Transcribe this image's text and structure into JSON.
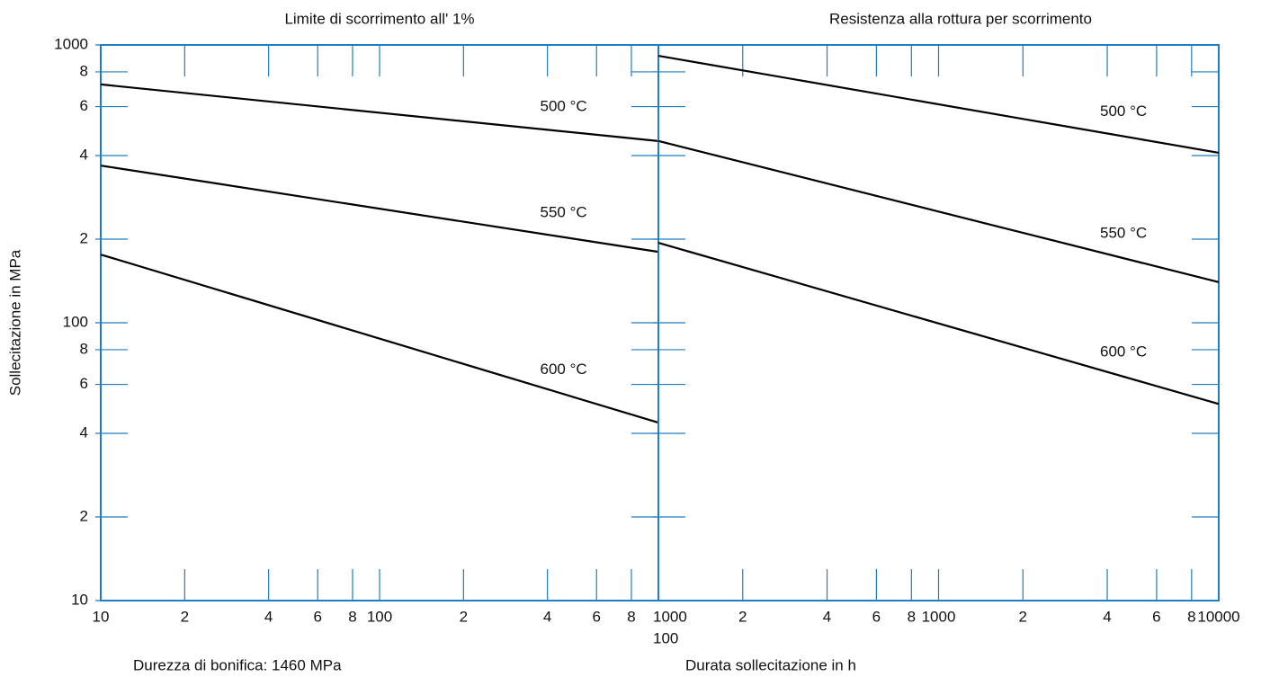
{
  "chart_data": [
    {
      "type": "line",
      "title": "Limite di scorrimento all' 1%",
      "ylabel": "Sollecitazione in MPa",
      "xlabel": "Durezza di bonifica: 1460 MPa",
      "log_x": true,
      "log_y": true,
      "xlim": [
        10,
        1000
      ],
      "ylim": [
        10,
        1000
      ],
      "xticks": [
        10,
        {
          "value": 20,
          "label": "2"
        },
        {
          "value": 40,
          "label": "4"
        },
        {
          "value": 60,
          "label": "6"
        },
        {
          "value": 80,
          "label": "8"
        },
        100,
        {
          "value": 200,
          "label": "2"
        },
        {
          "value": 400,
          "label": "4"
        },
        {
          "value": 600,
          "label": "6"
        },
        {
          "value": 800,
          "label": "8"
        },
        1000
      ],
      "yticks": [
        10,
        {
          "value": 20,
          "label": "2"
        },
        {
          "value": 40,
          "label": "4"
        },
        {
          "value": 60,
          "label": "6"
        },
        {
          "value": 80,
          "label": "8"
        },
        100,
        {
          "value": 200,
          "label": "2"
        },
        {
          "value": 400,
          "label": "4"
        },
        {
          "value": 600,
          "label": "6"
        },
        {
          "value": 800,
          "label": "8"
        },
        1000
      ],
      "axis_color": "#1f7ec1",
      "x": [
        10,
        1000
      ],
      "series": [
        {
          "name": "500 °C",
          "color": "#000000",
          "values": [
            721,
            451
          ]
        },
        {
          "name": "550 °C",
          "color": "#000000",
          "values": [
            368,
            180
          ]
        },
        {
          "name": "600 °C",
          "color": "#000000",
          "values": [
            176,
            43.7
          ]
        }
      ]
    },
    {
      "type": "line",
      "title": "Resistenza alla rottura per scorrimento",
      "xlabel": "Durata sollecitazione in h",
      "log_x": true,
      "log_y": true,
      "xlim": [
        100,
        10000
      ],
      "ylim": [
        10,
        1000
      ],
      "xticks": [
        100,
        {
          "value": 200,
          "label": "2"
        },
        {
          "value": 400,
          "label": "4"
        },
        {
          "value": 600,
          "label": "6"
        },
        {
          "value": 800,
          "label": "8"
        },
        1000,
        {
          "value": 2000,
          "label": "2"
        },
        {
          "value": 4000,
          "label": "4"
        },
        {
          "value": 6000,
          "label": "6"
        },
        {
          "value": 8000,
          "label": "8"
        },
        10000
      ],
      "axis_color": "#1f7ec1",
      "x": [
        100,
        10000
      ],
      "series": [
        {
          "name": "500 °C",
          "color": "#000000",
          "values": [
            914,
            409
          ]
        },
        {
          "name": "550 °C",
          "color": "#000000",
          "values": [
            451,
            140
          ]
        },
        {
          "name": "600 °C",
          "color": "#000000",
          "values": [
            194,
            51
          ]
        }
      ]
    }
  ]
}
